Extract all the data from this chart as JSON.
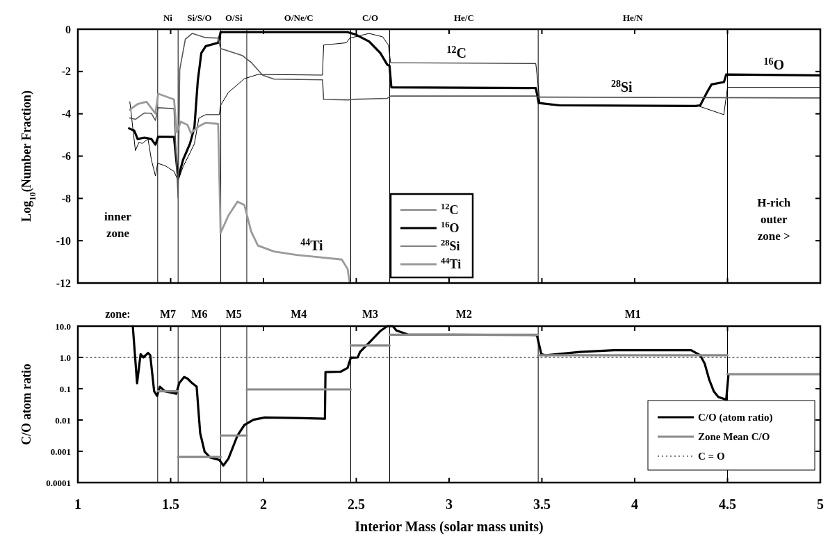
{
  "chart_data": [
    {
      "type": "line",
      "ylabel": "Log$_{10}$(Number Fraction)",
      "xlim": [
        1,
        5
      ],
      "ylim": [
        -12,
        0
      ],
      "xticks": [
        {
          "value": 1,
          "label": null
        },
        {
          "value": 1.5,
          "label": null
        },
        {
          "value": 2,
          "label": null
        },
        {
          "value": 2.5,
          "label": null
        },
        {
          "value": 3,
          "label": null
        },
        {
          "value": 3.5,
          "label": null
        },
        {
          "value": 4,
          "label": null
        },
        {
          "value": 4.5,
          "label": null
        },
        {
          "value": 5,
          "label": null
        }
      ],
      "yticks": [
        0,
        -2,
        -4,
        -6,
        -8,
        -10,
        -12
      ],
      "tick_labels": "y",
      "legend": "bottom",
      "series": [
        {
          "name": "$^{12}$C",
          "color": "#000000",
          "x": [
            1.28,
            1.31,
            1.329,
            1.347,
            1.378,
            1.396,
            1.418,
            1.43,
            1.469,
            1.518,
            1.54,
            1.567,
            1.604,
            1.628,
            1.652,
            1.689,
            1.762,
            1.769,
            1.811,
            1.897,
            1.97,
            2.318,
            2.324,
            2.447,
            2.465,
            2.569,
            2.642,
            2.673,
            2.685,
            3.467,
            3.49,
            3.55,
            4.34,
            4.48,
            4.5,
            5
          ],
          "values": [
            -3.43,
            -5.74,
            -5.35,
            -5.4,
            -5.19,
            -6.17,
            -6.94,
            -6.34,
            -6.45,
            -6.72,
            -7.16,
            -6.5,
            -5.85,
            -5.41,
            -4.2,
            -4.04,
            -4.04,
            -3.6,
            -2.99,
            -2.34,
            -2.14,
            -2.17,
            -0.75,
            -0.64,
            -0.42,
            -0.2,
            -0.36,
            -0.75,
            -1.59,
            -1.62,
            -3.5,
            -3.58,
            -3.62,
            -4.04,
            -2.75,
            -2.75
          ]
        },
        {
          "name": "$^{16}$O",
          "color": "#000000",
          "x": [
            1.276,
            1.304,
            1.322,
            1.359,
            1.396,
            1.418,
            1.433,
            1.518,
            1.54,
            1.567,
            1.604,
            1.628,
            1.646,
            1.665,
            1.689,
            1.756,
            1.769,
            2.453,
            2.496,
            2.569,
            2.63,
            2.667,
            2.679,
            2.689,
            3.467,
            3.483,
            3.595,
            4.328,
            4.353,
            4.389,
            4.414,
            4.481,
            4.493,
            5
          ],
          "values": [
            -4.69,
            -4.8,
            -5.19,
            -5.13,
            -5.19,
            -5.46,
            -5.08,
            -5.09,
            -7.05,
            -6.17,
            -5.41,
            -4.64,
            -2.45,
            -1.13,
            -0.8,
            -0.64,
            -0.14,
            -0.14,
            -0.25,
            -0.58,
            -1.13,
            -1.68,
            -1.73,
            -2.75,
            -2.78,
            -3.49,
            -3.6,
            -3.63,
            -3.6,
            -2.99,
            -2.61,
            -2.5,
            -2.14,
            -2.18
          ]
        },
        {
          "name": "$^{28}$Si",
          "color": "#555555",
          "x": [
            1.28,
            1.31,
            1.359,
            1.396,
            1.418,
            1.433,
            1.518,
            1.54,
            1.549,
            1.579,
            1.616,
            1.689,
            1.756,
            1.769,
            1.885,
            1.934,
            1.995,
            2.056,
            2.318,
            2.324,
            2.46,
            2.471,
            2.667,
            2.685,
            3.467,
            3.48,
            5
          ],
          "values": [
            -4.2,
            -4.26,
            -3.96,
            -3.98,
            -4.31,
            -3.71,
            -3.76,
            -7.98,
            -1.9,
            -0.47,
            -0.2,
            -0.4,
            -0.42,
            -0.91,
            -1.24,
            -1.57,
            -2.17,
            -2.36,
            -2.39,
            -3.32,
            -3.34,
            -3.32,
            -3.27,
            -3.16,
            -3.16,
            -3.21,
            -3.25
          ]
        },
        {
          "name": "$^{44}$Ti",
          "color": "#9a9a9a",
          "x": [
            1.28,
            1.322,
            1.37,
            1.418,
            1.433,
            1.518,
            1.533,
            1.555,
            1.591,
            1.609,
            1.652,
            1.689,
            1.756,
            1.769,
            1.811,
            1.86,
            1.897,
            1.934,
            1.97,
            2.056,
            2.178,
            2.3,
            2.422,
            2.453,
            2.465
          ],
          "values": [
            -3.81,
            -3.54,
            -3.43,
            -3.98,
            -3.05,
            -3.32,
            -4.86,
            -4.37,
            -4.53,
            -4.91,
            -4.59,
            -4.42,
            -4.48,
            -9.63,
            -8.81,
            -8.15,
            -8.31,
            -9.57,
            -10.23,
            -10.51,
            -10.67,
            -10.78,
            -10.89,
            -11.33,
            -12
          ]
        }
      ],
      "ref_lines": [
        {
          "axis": "x",
          "value": 1.43,
          "color": "#000000"
        },
        {
          "axis": "x",
          "value": 1.54,
          "color": "#000000"
        },
        {
          "axis": "x",
          "value": 1.77,
          "color": "#000000"
        },
        {
          "axis": "x",
          "value": 1.91,
          "color": "#000000"
        },
        {
          "axis": "x",
          "value": 2.47,
          "color": "#000000"
        },
        {
          "axis": "x",
          "value": 2.68,
          "color": "#000000"
        },
        {
          "axis": "x",
          "value": 3.48,
          "color": "#000000"
        },
        {
          "axis": "x",
          "value": 4.5,
          "color": "#000000"
        }
      ],
      "annotations": [
        "inner zone",
        "Ni",
        "Si/S/O",
        "O/Si",
        "O/Ne/C",
        "C/O",
        "He/C",
        "He/N",
        "H-rich outer zone >",
        {
          "text": "$^{12}$C",
          "x": 3.04,
          "y": -1.62
        },
        {
          "text": "$^{16}$O",
          "x": 4.75,
          "y": -2.17
        },
        {
          "text": "$^{28}$Si",
          "x": 3.93,
          "y": -3.21
        },
        {
          "text": "$^{44}$Ti",
          "x": 2.26,
          "y": -10.73
        }
      ]
    },
    {
      "type": "line",
      "ylabel": "C/O atom ratio",
      "xlabel": "Interior Mass (solar mass units)",
      "log": "y",
      "xlim": [
        1,
        5
      ],
      "ylim": [
        0.0001,
        10
      ],
      "xticks": [
        1,
        1.5,
        2,
        2.5,
        3,
        3.5,
        4,
        4.5,
        5
      ],
      "yticks": [
        0.0001,
        0.001,
        0.01,
        0.1,
        {
          "value": 1,
          "label": "1.0"
        },
        {
          "value": 10,
          "label": "10.0"
        }
      ],
      "legend": "bottom right",
      "series": [
        {
          "name": "C/O (atom ratio)",
          "color": "#000000",
          "x": [
            1.296,
            1.319,
            1.338,
            1.353,
            1.378,
            1.39,
            1.411,
            1.427,
            1.442,
            1.469,
            1.53,
            1.546,
            1.573,
            1.591,
            1.616,
            1.64,
            1.659,
            1.683,
            1.714,
            1.762,
            1.784,
            1.811,
            1.86,
            1.897,
            1.946,
            2.007,
            2.178,
            2.331,
            2.334,
            2.416,
            2.453,
            2.471,
            2.477,
            2.508,
            2.52,
            2.581,
            2.63,
            2.667,
            2.697,
            2.716,
            2.777,
            3.473,
            3.497,
            3.522,
            3.705,
            3.889,
            4.304,
            4.353,
            4.377,
            4.402,
            4.426,
            4.451,
            4.493,
            4.505
          ],
          "values": [
            10,
            0.15,
            1.27,
            1.0,
            1.39,
            1.17,
            0.083,
            0.059,
            0.116,
            0.083,
            0.069,
            0.15,
            0.238,
            0.21,
            0.15,
            0.116,
            0.0038,
            0.00097,
            0.00063,
            0.00053,
            0.00035,
            0.00058,
            0.0032,
            0.0069,
            0.0102,
            0.012,
            0.0116,
            0.011,
            0.34,
            0.35,
            0.46,
            1.0,
            0.98,
            1.0,
            1.5,
            3.5,
            7.0,
            10,
            10,
            7.3,
            5.4,
            5.2,
            1.27,
            1.17,
            1.5,
            1.7,
            1.7,
            1.17,
            0.64,
            0.19,
            0.083,
            0.054,
            0.045,
            0.27
          ]
        },
        {
          "name": "Zone Mean C/O",
          "color": "#8a8a8a",
          "x": [
            1.43,
            1.54
          ],
          "values": [
            0.083,
            0.083
          ]
        },
        {
          "name": "C = O",
          "color": "#000000",
          "line_style": "dotted",
          "x": [
            1,
            5
          ],
          "values": [
            1,
            1
          ]
        },
        {
          "color": "#8a8a8a",
          "x": [
            1.54,
            1.77
          ],
          "values": [
            0.00066,
            0.00066
          ]
        },
        {
          "color": "#8a8a8a",
          "x": [
            1.77,
            1.91
          ],
          "values": [
            0.0032,
            0.0032
          ]
        },
        {
          "color": "#8a8a8a",
          "x": [
            1.91,
            2.47
          ],
          "values": [
            0.095,
            0.095
          ]
        },
        {
          "color": "#8a8a8a",
          "x": [
            2.47,
            2.68
          ],
          "values": [
            2.4,
            2.4
          ]
        },
        {
          "color": "#8a8a8a",
          "x": [
            2.68,
            3.48
          ],
          "values": [
            5.3,
            5.3
          ]
        },
        {
          "color": "#8a8a8a",
          "x": [
            3.48,
            4.5
          ],
          "values": [
            1.17,
            1.17
          ]
        },
        {
          "color": "#8a8a8a",
          "x": [
            4.5,
            5
          ],
          "values": [
            0.29,
            0.29
          ]
        }
      ],
      "ref_lines": [
        {
          "axis": "x",
          "value": 1.43,
          "color": "#000000"
        },
        {
          "axis": "x",
          "value": 1.54,
          "color": "#000000"
        },
        {
          "axis": "x",
          "value": 1.77,
          "color": "#000000"
        },
        {
          "axis": "x",
          "value": 1.91,
          "color": "#000000"
        },
        {
          "axis": "x",
          "value": 2.47,
          "color": "#000000"
        },
        {
          "axis": "x",
          "value": 2.68,
          "color": "#000000"
        },
        {
          "axis": "x",
          "value": 3.48,
          "color": "#000000"
        },
        {
          "axis": "x",
          "value": 4.5,
          "color": "#000000"
        }
      ],
      "annotations": [
        "zone:",
        "M7",
        "M6",
        "M5",
        "M4",
        "M3",
        "M2",
        "M1"
      ]
    }
  ]
}
